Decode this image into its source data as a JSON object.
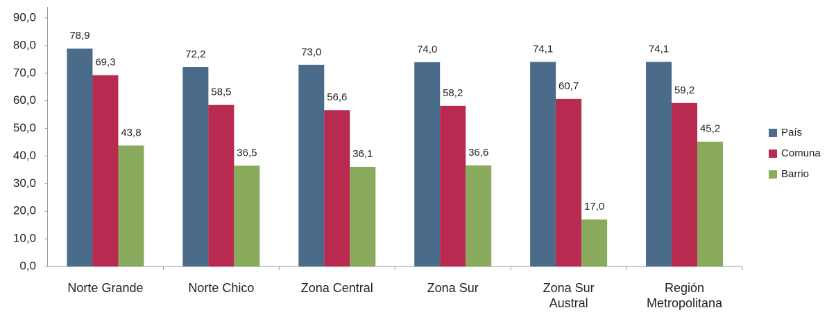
{
  "chart_data": {
    "type": "bar",
    "categories": [
      "Norte Grande",
      "Norte Chico",
      "Zona Central",
      "Zona Sur",
      "Zona Sur Austral",
      "Región Metropolitana"
    ],
    "series": [
      {
        "name": "País",
        "color": "#4a6b8a",
        "values": [
          78.9,
          72.2,
          73.0,
          74.0,
          74.1,
          74.1
        ],
        "value_labels": [
          "78,9",
          "72,2",
          "73,0",
          "74,0",
          "74,1",
          "74,1"
        ]
      },
      {
        "name": "Comuna",
        "color": "#b82a4f",
        "values": [
          69.3,
          58.5,
          56.6,
          58.2,
          60.7,
          59.2
        ],
        "value_labels": [
          "69,3",
          "58,5",
          "56,6",
          "58,2",
          "60,7",
          "59,2"
        ]
      },
      {
        "name": "Barrio",
        "color": "#8aaa5e",
        "values": [
          43.8,
          36.5,
          36.1,
          36.6,
          17.0,
          45.2
        ],
        "value_labels": [
          "43,8",
          "36,5",
          "36,1",
          "36,6",
          "17,0",
          "45,2"
        ]
      }
    ],
    "ylim": [
      0,
      90
    ],
    "yticks": [
      {
        "value": 0,
        "label": "0,0"
      },
      {
        "value": 10,
        "label": "10,0"
      },
      {
        "value": 20,
        "label": "20,0"
      },
      {
        "value": 30,
        "label": "30,0"
      },
      {
        "value": 40,
        "label": "40,0"
      },
      {
        "value": 50,
        "label": "50,0"
      },
      {
        "value": 60,
        "label": "60,0"
      },
      {
        "value": 70,
        "label": "70,0"
      },
      {
        "value": 80,
        "label": "80,0"
      },
      {
        "value": 90,
        "label": "90,0"
      }
    ],
    "legend": "right"
  }
}
